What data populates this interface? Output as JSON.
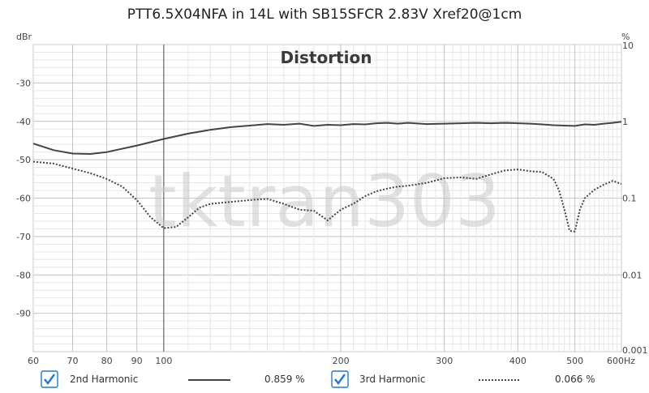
{
  "title": "PTT6.5X04NFA in 14L with SB15SFCR 2.83V Xref20@1cm",
  "watermark": "tktran303",
  "chart_data": {
    "type": "line",
    "title": "Distortion",
    "ylabel_left": "dBr",
    "ylabel_right": "%",
    "xlabel_unit": "Hz",
    "xscale": "log",
    "xlim": [
      60,
      600
    ],
    "ylim": [
      -100,
      -20
    ],
    "x_ticks": [
      60,
      70,
      80,
      90,
      100,
      200,
      300,
      400,
      500,
      600
    ],
    "x_tick_labels": [
      "60",
      "70",
      "80",
      "90",
      "100",
      "200",
      "300",
      "400",
      "500",
      "600Hz"
    ],
    "y_ticks_left": [
      -30,
      -40,
      -50,
      -60,
      -70,
      -80,
      -90
    ],
    "y_tick_labels_left": [
      "-30",
      "-40",
      "-50",
      "-60",
      "-70",
      "-80",
      "-90"
    ],
    "y_ticks_right_db": [
      -20,
      -40,
      -60,
      -80,
      -100
    ],
    "y_tick_labels_right": [
      "10",
      "1",
      "0.1",
      "0.01",
      "0.001"
    ],
    "grid": true,
    "series": [
      {
        "name": "2nd Harmonic",
        "value_label": "0.859 %",
        "style": "solid",
        "color": "#444444",
        "x": [
          60,
          65,
          70,
          75,
          80,
          90,
          100,
          110,
          120,
          130,
          140,
          150,
          160,
          170,
          180,
          190,
          200,
          210,
          220,
          230,
          240,
          250,
          260,
          280,
          300,
          320,
          340,
          360,
          380,
          400,
          420,
          440,
          460,
          480,
          500,
          520,
          540,
          560,
          580,
          600
        ],
        "values": [
          -45.8,
          -47.5,
          -48.4,
          -48.5,
          -48.0,
          -46.3,
          -44.6,
          -43.2,
          -42.2,
          -41.5,
          -41.1,
          -40.7,
          -40.9,
          -40.6,
          -41.2,
          -40.9,
          -41.0,
          -40.7,
          -40.8,
          -40.5,
          -40.4,
          -40.6,
          -40.4,
          -40.7,
          -40.6,
          -40.5,
          -40.4,
          -40.5,
          -40.4,
          -40.5,
          -40.6,
          -40.8,
          -41.0,
          -41.1,
          -41.2,
          -40.8,
          -40.9,
          -40.6,
          -40.4,
          -40.1
        ]
      },
      {
        "name": "3rd Harmonic",
        "value_label": "0.066 %",
        "style": "dotted",
        "color": "#444444",
        "x": [
          60,
          65,
          70,
          75,
          80,
          85,
          90,
          95,
          100,
          105,
          110,
          115,
          120,
          130,
          140,
          150,
          160,
          170,
          180,
          190,
          200,
          210,
          220,
          230,
          240,
          250,
          260,
          280,
          300,
          320,
          340,
          360,
          380,
          400,
          420,
          440,
          460,
          470,
          480,
          490,
          500,
          510,
          520,
          540,
          560,
          580,
          600
        ],
        "values": [
          -50.5,
          -51.0,
          -52.3,
          -53.5,
          -55.0,
          -57.0,
          -60.5,
          -65.0,
          -67.8,
          -67.5,
          -65.0,
          -62.5,
          -61.5,
          -61.0,
          -60.5,
          -60.2,
          -61.5,
          -63.0,
          -63.3,
          -65.8,
          -63.0,
          -61.5,
          -59.5,
          -58.2,
          -57.5,
          -57.0,
          -56.8,
          -56.0,
          -54.8,
          -54.6,
          -55.0,
          -53.8,
          -52.8,
          -52.5,
          -53.0,
          -53.2,
          -55.0,
          -58.0,
          -63.0,
          -68.5,
          -68.7,
          -63.0,
          -60.0,
          -57.8,
          -56.5,
          -55.5,
          -56.3
        ]
      }
    ]
  },
  "legend": {
    "items": [
      {
        "label": "2nd Harmonic",
        "value": "0.859 %",
        "checked": true
      },
      {
        "label": "3rd Harmonic",
        "value": "0.066 %",
        "checked": true
      }
    ]
  },
  "colors": {
    "accent": "#1e7ad8",
    "line": "#444444",
    "grid": "#d8d8d8"
  }
}
